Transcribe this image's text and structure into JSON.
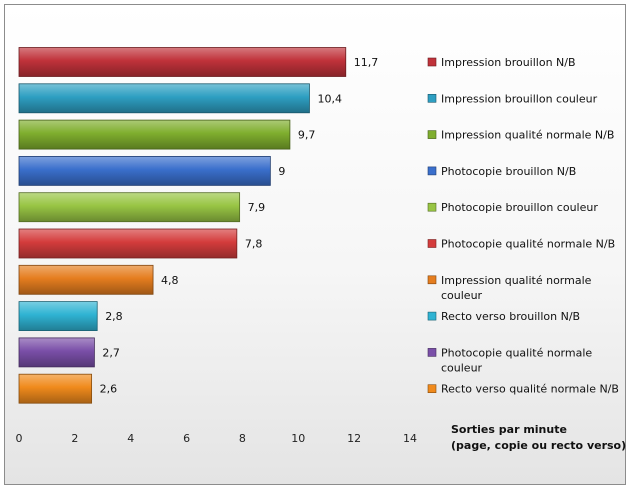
{
  "chart_data": {
    "type": "bar",
    "orientation": "horizontal",
    "title": "",
    "categories": [
      "Impression brouillon N/B",
      "Impression brouillon couleur",
      "Impression qualité normale N/B",
      "Photocopie brouillon N/B",
      "Photocopie brouillon couleur",
      "Photocopie qualité normale N/B",
      "Impression qualité normale couleur",
      "Recto verso brouillon N/B",
      "Photocopie qualité normale couleur",
      "Recto verso qualité normale N/B"
    ],
    "values": [
      11.7,
      10.4,
      9.7,
      9,
      7.9,
      7.8,
      4.8,
      2.8,
      2.7,
      2.6
    ],
    "value_labels": [
      "11,7",
      "10,4",
      "9,7",
      "9",
      "7,9",
      "7,8",
      "4,8",
      "2,8",
      "2,7",
      "2,6"
    ],
    "legend_lines": [
      [
        "Impression brouillon N/B"
      ],
      [
        "Impression brouillon couleur"
      ],
      [
        "Impression qualité normale N/B"
      ],
      [
        "Photocopie brouillon N/B"
      ],
      [
        "Photocopie brouillon couleur"
      ],
      [
        "Photocopie qualité normale N/B"
      ],
      [
        "Impression qualité normale",
        "couleur"
      ],
      [
        "Recto verso brouillon N/B"
      ],
      [
        "Photocopie qualité normale",
        "couleur"
      ],
      [
        "Recto verso qualité normale N/B"
      ]
    ],
    "colors": [
      "#c0323a",
      "#2e9fc2",
      "#7fae2e",
      "#3a6fcc",
      "#98c544",
      "#d43c3c",
      "#e57d1f",
      "#2fb3d3",
      "#7a4fa8",
      "#f08a1c"
    ],
    "xlim": [
      0,
      14
    ],
    "x_ticks": [
      0,
      2,
      4,
      6,
      8,
      10,
      12,
      14
    ],
    "xlabel_lines": [
      "Sorties par minute",
      "(page, copie ou recto verso)"
    ],
    "legend_position": "right",
    "grid": false
  }
}
